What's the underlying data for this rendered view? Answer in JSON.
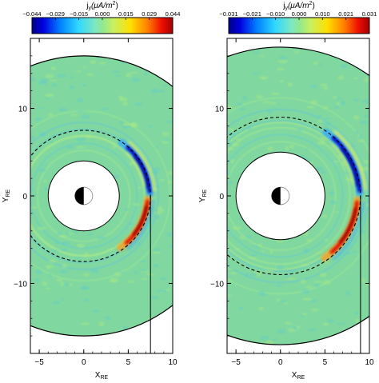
{
  "chart_data": [
    {
      "type": "heatmap",
      "colorbar": {
        "title": "j",
        "title_subscript": "y",
        "title_units": "(μA/m",
        "title_units_sup": "2",
        "title_units_close": ")",
        "range": [
          -0.044,
          0.044
        ],
        "ticks": [
          "−0.044",
          "−0.029",
          "−0.015",
          "0.000",
          "0.015",
          "0.029",
          "0.044"
        ]
      },
      "xlabel": "X",
      "xlabel_sub": "RE",
      "ylabel": "Y",
      "ylabel_sub": "RE",
      "xlim": [
        -6,
        10
      ],
      "ylim": [
        -18,
        18
      ],
      "xticks": [
        "−5",
        "0",
        "5",
        "10"
      ],
      "xtick_values": [
        -5,
        0,
        5,
        10
      ],
      "yticks": [
        "10",
        "0",
        "−10"
      ],
      "ytick_values": [
        10,
        0,
        -10
      ],
      "outer_boundary_radius": 16.0,
      "inner_boundary_radius": 4.0,
      "dashed_circle_radius": 7.5,
      "vertical_line_x": 7.5,
      "current_structure": {
        "negative_band_center_x": 7.3,
        "negative_band_y": [
          0,
          6
        ],
        "positive_band_center_x": 7.0,
        "positive_band_y": [
          -6,
          0
        ]
      }
    },
    {
      "type": "heatmap",
      "colorbar": {
        "title": "j",
        "title_subscript": "y",
        "title_units": "(μA/m",
        "title_units_sup": "2",
        "title_units_close": ")",
        "range": [
          -0.031,
          0.031
        ],
        "ticks": [
          "−0.031",
          "−0.021",
          "−0.010",
          "0.000",
          "0.010",
          "0.021",
          "0.031"
        ]
      },
      "xlabel": "X",
      "xlabel_sub": "RE",
      "ylabel": "Y",
      "ylabel_sub": "RE",
      "xlim": [
        -6,
        10
      ],
      "ylim": [
        -18,
        18
      ],
      "xticks": [
        "−5",
        "0",
        "5",
        "10"
      ],
      "xtick_values": [
        -5,
        0,
        5,
        10
      ],
      "yticks": [
        "10",
        "0",
        "−10"
      ],
      "ytick_values": [
        10,
        0,
        -10
      ],
      "outer_boundary_radius": 17.0,
      "inner_boundary_radius": 5.0,
      "dashed_circle_radius": 9.0,
      "vertical_line_x": 9.0,
      "current_structure": {
        "negative_band_center_x": 8.6,
        "negative_band_y": [
          0,
          7
        ],
        "positive_band_center_x": 8.2,
        "positive_band_y": [
          -7,
          0
        ]
      }
    }
  ],
  "colors": {
    "background": "#80d8a0",
    "negative_strong": "#0000a0",
    "positive_strong": "#b00000"
  }
}
